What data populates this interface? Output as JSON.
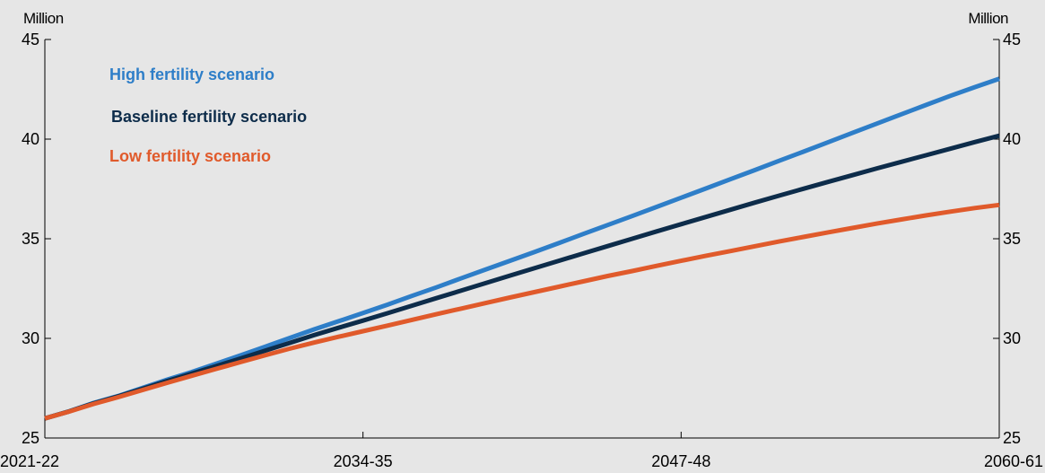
{
  "chart_data": {
    "type": "line",
    "y_unit_left": "Million",
    "y_unit_right": "Million",
    "ylim": [
      25,
      45
    ],
    "y_ticks": [
      25,
      30,
      35,
      40,
      45
    ],
    "x_ticks": [
      "2021-22",
      "2034-35",
      "2047-48",
      "2060-61"
    ],
    "x": [
      "2021-22",
      "2022-23",
      "2023-24",
      "2024-25",
      "2025-26",
      "2026-27",
      "2027-28",
      "2028-29",
      "2029-30",
      "2030-31",
      "2031-32",
      "2032-33",
      "2033-34",
      "2034-35",
      "2035-36",
      "2036-37",
      "2037-38",
      "2038-39",
      "2039-40",
      "2040-41",
      "2041-42",
      "2042-43",
      "2043-44",
      "2044-45",
      "2045-46",
      "2046-47",
      "2047-48",
      "2048-49",
      "2049-50",
      "2050-51",
      "2051-52",
      "2052-53",
      "2053-54",
      "2054-55",
      "2055-56",
      "2056-57",
      "2057-58",
      "2058-59",
      "2059-60",
      "2060-61"
    ],
    "grid": false,
    "legend_placement": "top-left",
    "series": [
      {
        "name": "High fertility scenario",
        "color": "#2e7ec8",
        "values": [
          25.98,
          26.34,
          26.76,
          27.11,
          27.52,
          27.93,
          28.31,
          28.73,
          29.15,
          29.58,
          30.02,
          30.45,
          30.86,
          31.27,
          31.69,
          32.13,
          32.56,
          33.01,
          33.45,
          33.89,
          34.33,
          34.78,
          35.24,
          35.69,
          36.14,
          36.6,
          37.06,
          37.52,
          37.98,
          38.44,
          38.91,
          39.37,
          39.84,
          40.31,
          40.78,
          41.25,
          41.71,
          42.17,
          42.61,
          43.03
        ]
      },
      {
        "name": "Baseline fertility scenario",
        "color": "#0d2c4a",
        "values": [
          25.98,
          26.34,
          26.74,
          27.09,
          27.47,
          27.86,
          28.23,
          28.61,
          28.99,
          29.38,
          29.77,
          30.16,
          30.53,
          30.89,
          31.26,
          31.64,
          32.02,
          32.39,
          32.77,
          33.15,
          33.52,
          33.89,
          34.26,
          34.63,
          35.0,
          35.37,
          35.73,
          36.09,
          36.45,
          36.81,
          37.16,
          37.51,
          37.85,
          38.19,
          38.53,
          38.86,
          39.19,
          39.52,
          39.85,
          40.17
        ]
      },
      {
        "name": "Low fertility scenario",
        "color": "#e05a2b",
        "values": [
          25.98,
          26.33,
          26.71,
          27.05,
          27.41,
          27.77,
          28.12,
          28.47,
          28.81,
          29.15,
          29.48,
          29.79,
          30.08,
          30.36,
          30.64,
          30.93,
          31.21,
          31.49,
          31.77,
          32.05,
          32.32,
          32.59,
          32.86,
          33.13,
          33.38,
          33.64,
          33.89,
          34.14,
          34.38,
          34.62,
          34.86,
          35.09,
          35.32,
          35.54,
          35.76,
          35.97,
          36.17,
          36.36,
          36.54,
          36.7
        ]
      }
    ]
  }
}
